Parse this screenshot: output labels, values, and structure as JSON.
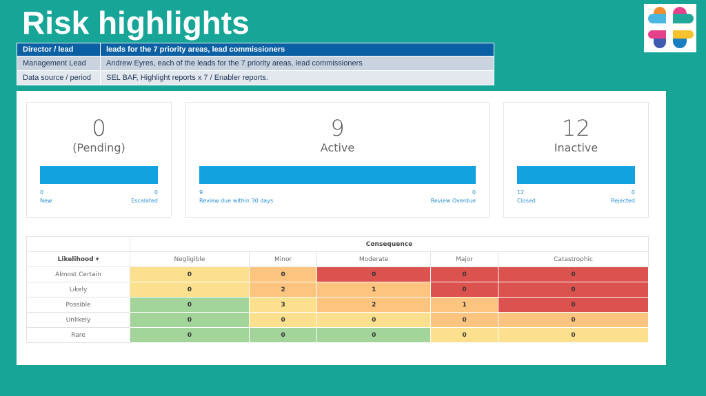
{
  "page_title": "Risk highlights",
  "meta_table": {
    "header": {
      "label": "Director / lead",
      "value": "leads for the 7 priority areas, lead commissioners"
    },
    "rows": [
      {
        "label": "Management Lead",
        "value": "Andrew Eyres, each of the leads for the 7 priority areas, lead commissioners"
      },
      {
        "label": "Data source / period",
        "value": "SEL BAF, Highlight reports x 7 / Enabler reports."
      }
    ]
  },
  "cards": [
    {
      "value": "0",
      "label": "(Pending)",
      "left_value": "0",
      "left_label": "New",
      "right_value": "0",
      "right_label": "Escalated",
      "progress": 1.0
    },
    {
      "value": "9",
      "label": "Active",
      "left_value": "9",
      "left_label": "Review due within 30 days",
      "right_value": "0",
      "right_label": "Review Overdue",
      "progress": 1.0
    },
    {
      "value": "12",
      "label": "Inactive",
      "left_value": "12",
      "left_label": "Closed",
      "right_value": "0",
      "right_label": "Rejected",
      "progress": 1.0
    }
  ],
  "matrix": {
    "consequence_label": "Consequence",
    "likelihood_label": "Likelihood",
    "columns": [
      "Negligible",
      "Minor",
      "Moderate",
      "Major",
      "Catastrophic"
    ],
    "rows": [
      {
        "label": "Almost Certain",
        "values": [
          "0",
          "0",
          "0",
          "0",
          "0"
        ]
      },
      {
        "label": "Likely",
        "values": [
          "0",
          "2",
          "1",
          "0",
          "0"
        ]
      },
      {
        "label": "Possible",
        "values": [
          "0",
          "3",
          "2",
          "1",
          "0"
        ]
      },
      {
        "label": "Unlikely",
        "values": [
          "0",
          "0",
          "0",
          "0",
          "0"
        ]
      },
      {
        "label": "Rare",
        "values": [
          "0",
          "0",
          "0",
          "0",
          "0"
        ]
      }
    ],
    "colors": {
      "green": "#a3d49a",
      "yellow": "#fde08d",
      "orange": "#fcc47f",
      "red": "#db524e"
    }
  },
  "colors": {
    "background": "#17a597",
    "header_blue": "#0b5fa3",
    "bar_blue": "#12a2df"
  }
}
